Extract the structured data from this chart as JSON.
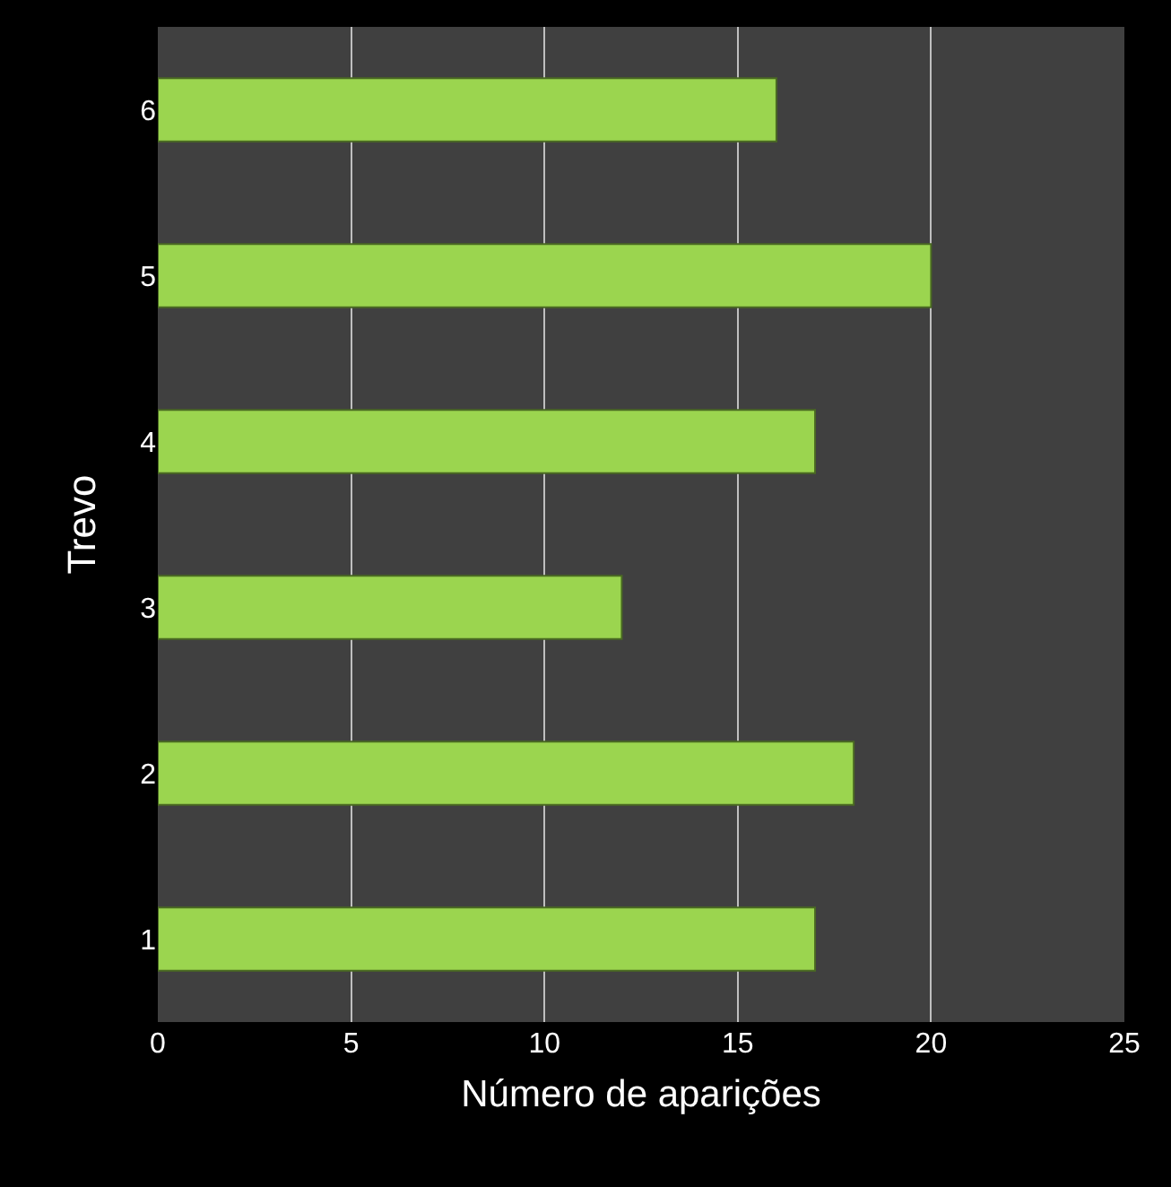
{
  "chart_data": {
    "type": "bar",
    "orientation": "horizontal",
    "xlabel": "Número de aparições",
    "ylabel": "Trevo",
    "categories": [
      "6",
      "5",
      "4",
      "3",
      "2",
      "1"
    ],
    "values": [
      16,
      20,
      17,
      12,
      18,
      17
    ],
    "color": "#9bd54f",
    "xlim": [
      0,
      25
    ],
    "xticks": [
      0,
      5,
      10,
      15,
      20,
      25
    ],
    "grid": "x"
  }
}
